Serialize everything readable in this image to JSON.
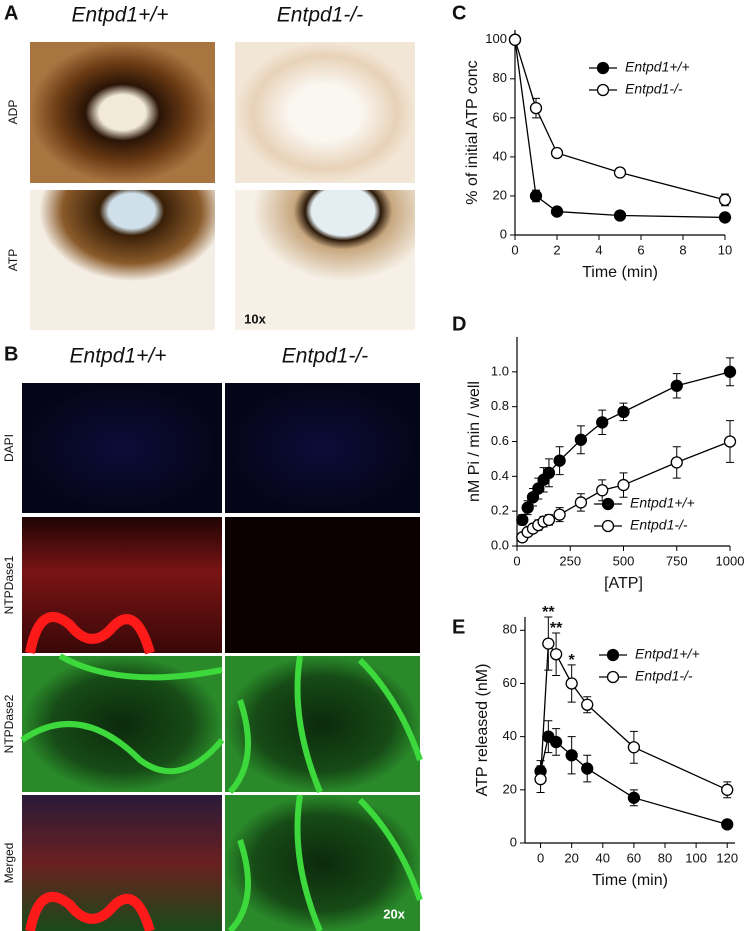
{
  "panel_a": {
    "letter": "A",
    "columns": [
      "Entpd1+/+",
      "Entpd1-/-"
    ],
    "rows": [
      "ADP",
      "ATP"
    ],
    "magnification": "10x"
  },
  "panel_b": {
    "letter": "B",
    "columns": [
      "Entpd1+/+",
      "Entpd1-/-"
    ],
    "rows": [
      "DAPI",
      "NTPDase1",
      "NTPDase2",
      "Merged"
    ],
    "magnification": "20x"
  },
  "chart_data": [
    {
      "type": "line",
      "panel": "C",
      "xlabel": "Time (min)",
      "ylabel": "% of initial ATP conc",
      "xlim": [
        0,
        10
      ],
      "xticks": [
        0,
        2,
        4,
        6,
        8,
        10
      ],
      "ylim": [
        0,
        105
      ],
      "yticks": [
        0,
        20,
        40,
        60,
        80,
        100
      ],
      "legend": "upper right",
      "x": [
        0,
        1,
        2,
        5,
        10
      ],
      "series": [
        {
          "name": "Entpd1+/+",
          "color": "#000000",
          "filled": true,
          "values": [
            100,
            20,
            12,
            10,
            9
          ],
          "errors": [
            0,
            3,
            2,
            1,
            1
          ]
        },
        {
          "name": "Entpd1-/-",
          "color": "#000000",
          "filled": false,
          "values": [
            100,
            65,
            42,
            32,
            18
          ],
          "errors": [
            0,
            5,
            2,
            2,
            3
          ]
        }
      ]
    },
    {
      "type": "line",
      "panel": "D",
      "xlabel": "[ATP]",
      "ylabel": "nM Pi / min / well",
      "xlim": [
        0,
        1000
      ],
      "xticks": [
        0,
        250,
        500,
        750,
        1000
      ],
      "ylim": [
        0,
        1.2
      ],
      "yticks": [
        {
          "value": 0,
          "label": "0.0"
        },
        0.2,
        0.4,
        0.6,
        0.8,
        {
          "value": 1,
          "label": "1.0"
        }
      ],
      "legend": "lower right",
      "x": [
        25,
        50,
        75,
        100,
        125,
        150,
        200,
        300,
        400,
        500,
        750,
        1000
      ],
      "series": [
        {
          "name": "Entpd1+/+",
          "color": "#000000",
          "filled": true,
          "values": [
            0.15,
            0.22,
            0.28,
            0.33,
            0.38,
            0.42,
            0.49,
            0.61,
            0.71,
            0.77,
            0.92,
            1.0
          ],
          "errors": [
            0.03,
            0.04,
            0.05,
            0.06,
            0.07,
            0.08,
            0.08,
            0.08,
            0.07,
            0.05,
            0.07,
            0.08
          ]
        },
        {
          "name": "Entpd1-/-",
          "color": "#000000",
          "filled": false,
          "values": [
            0.05,
            0.08,
            0.1,
            0.12,
            0.14,
            0.15,
            0.18,
            0.25,
            0.32,
            0.35,
            0.48,
            0.6
          ],
          "errors": [
            0.02,
            0.02,
            0.02,
            0.03,
            0.03,
            0.03,
            0.04,
            0.05,
            0.06,
            0.07,
            0.09,
            0.12
          ]
        }
      ]
    },
    {
      "type": "line",
      "panel": "E",
      "xlabel": "Time (min)",
      "ylabel": "ATP released (nM)",
      "xlim": [
        -10,
        125
      ],
      "xticks": [
        0,
        20,
        40,
        60,
        80,
        100,
        120
      ],
      "ylim": [
        0,
        85
      ],
      "yticks": [
        0,
        20,
        40,
        60,
        80
      ],
      "legend": "upper right",
      "x": [
        0,
        5,
        10,
        20,
        30,
        60,
        120
      ],
      "series": [
        {
          "name": "Entpd1+/+",
          "color": "#000000",
          "filled": true,
          "values": [
            27,
            40,
            38,
            33,
            28,
            17,
            7
          ],
          "errors": [
            4,
            6,
            5,
            7,
            5,
            3,
            1
          ]
        },
        {
          "name": "Entpd1-/-",
          "color": "#000000",
          "filled": false,
          "values": [
            24,
            75,
            71,
            60,
            52,
            36,
            20
          ],
          "errors": [
            5,
            10,
            8,
            7,
            3,
            6,
            3
          ]
        }
      ],
      "annotations": [
        {
          "x": 5,
          "label": "**"
        },
        {
          "x": 10,
          "label": "**"
        },
        {
          "x": 20,
          "label": "*"
        }
      ]
    }
  ]
}
